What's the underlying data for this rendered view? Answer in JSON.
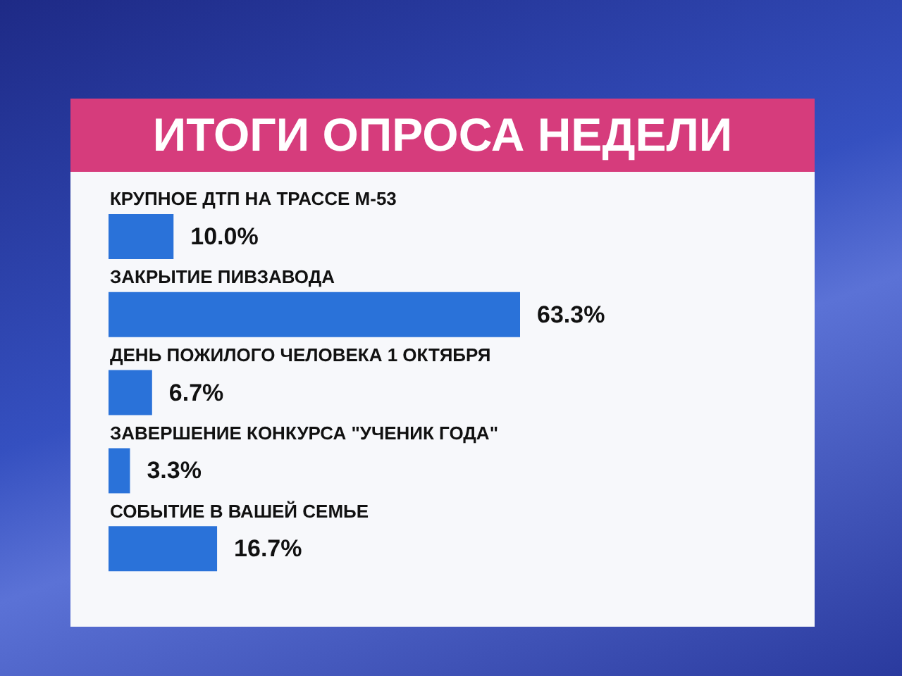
{
  "chart_data": {
    "type": "bar",
    "orientation": "horizontal",
    "title": "ИТОГИ ОПРОСА НЕДЕЛИ",
    "categories": [
      "КРУПНОЕ ДТП НА ТРАССЕ М-53",
      "ЗАКРЫТИЕ ПИВЗАВОДА",
      "ДЕНЬ ПОЖИЛОГО ЧЕЛОВЕКА 1 ОКТЯБРЯ",
      "ЗАВЕРШЕНИЕ КОНКУРСА \"УЧЕНИК ГОДА\"",
      "СОБЫТИЕ В ВАШЕЙ СЕМЬЕ"
    ],
    "values": [
      10.0,
      63.3,
      6.7,
      3.3,
      16.7
    ],
    "value_labels": [
      "10.0%",
      "63.3%",
      "6.7%",
      "3.3%",
      "16.7%"
    ],
    "color": "#2a72d9",
    "tick_labels": "y"
  }
}
